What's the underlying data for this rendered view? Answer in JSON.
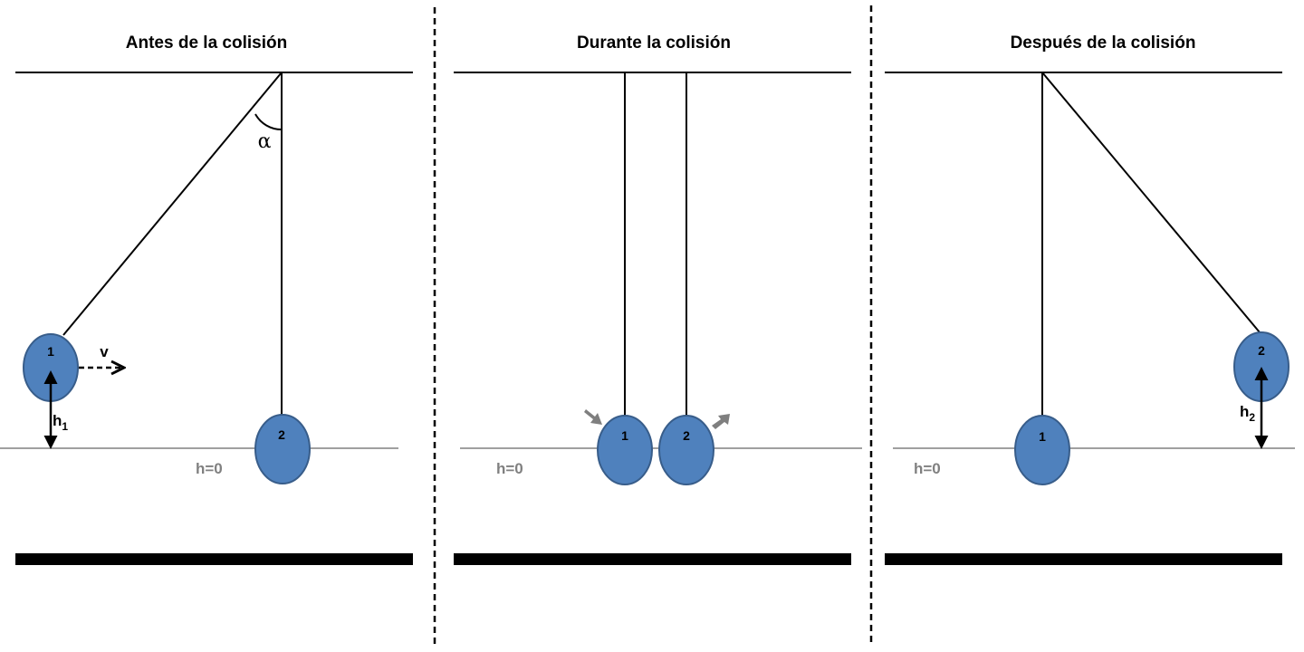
{
  "panels": {
    "before": {
      "title": "Antes de la colisión",
      "ball1": "1",
      "ball2": "2",
      "velocity": "v",
      "height_symbol": "h",
      "height_subscript": "1",
      "angle": "α",
      "ground": "h=0"
    },
    "during": {
      "title": "Durante la colisión",
      "ball1": "1",
      "ball2": "2",
      "ground": "h=0"
    },
    "after": {
      "title": "Después de la colisión",
      "ball1": "1",
      "ball2": "2",
      "height_symbol": "h",
      "height_subscript": "2",
      "ground": "h=0"
    }
  },
  "colors": {
    "ball_fill": "#4f81bd",
    "ball_stroke": "#385d8a",
    "ground_line": "#808080",
    "impact_arrow": "#7f7f7f"
  }
}
